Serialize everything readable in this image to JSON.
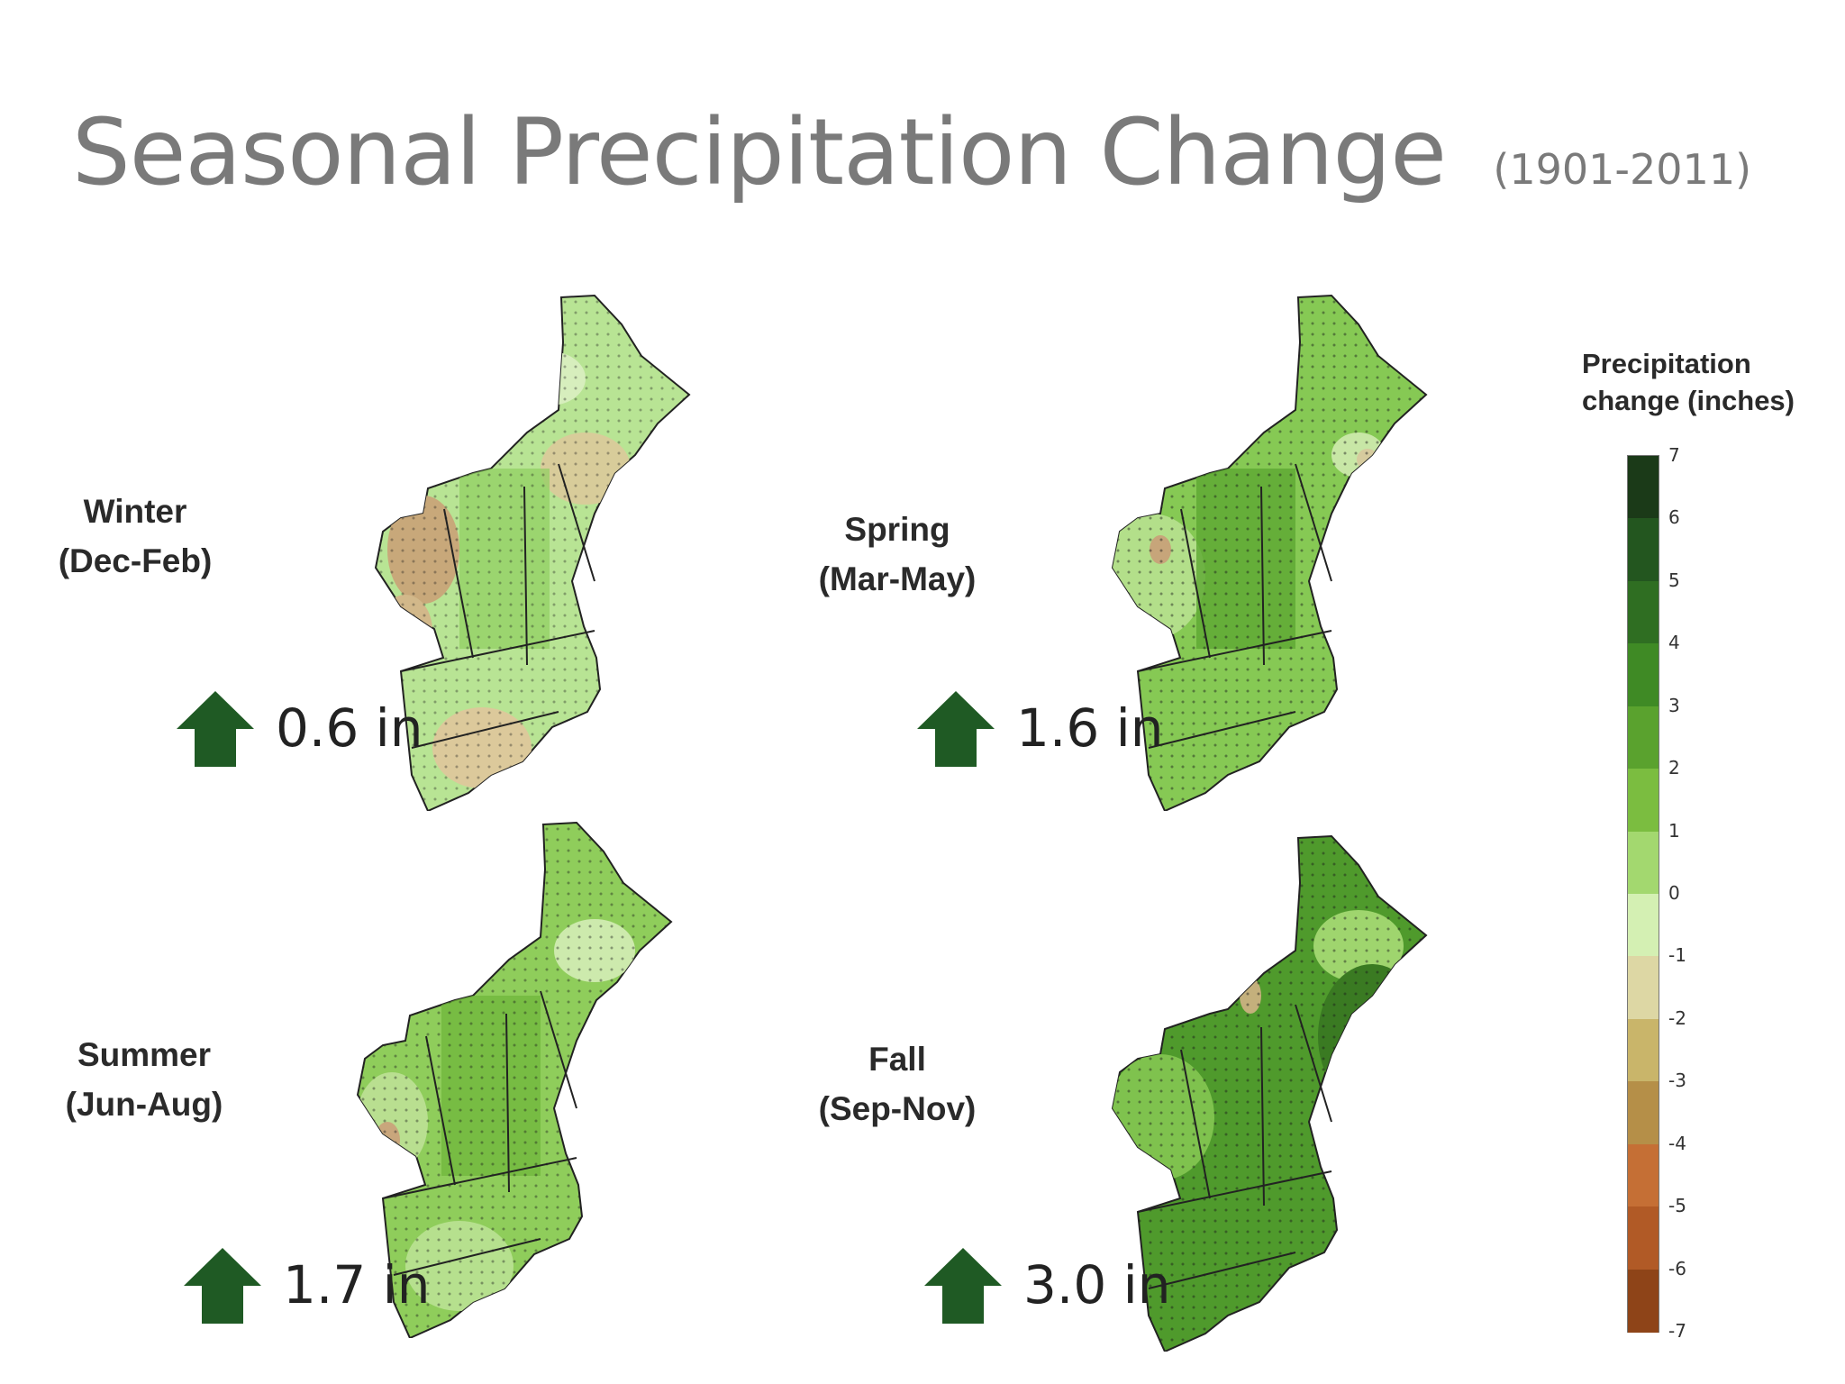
{
  "title": "Seasonal Precipitation Change",
  "subtitle": "(1901-2011)",
  "colors": {
    "title": "#7a7a7a",
    "arrow": "#1f5a24",
    "state_border": "#222222"
  },
  "panels": [
    {
      "season": "Winter",
      "months": "(Dec-Feb)",
      "change": "0.6 in",
      "change_value": 0.6
    },
    {
      "season": "Spring",
      "months": "(Mar-May)",
      "change": "1.6 in",
      "change_value": 1.6
    },
    {
      "season": "Summer",
      "months": "(Jun-Aug)",
      "change": "1.7 in",
      "change_value": 1.7
    },
    {
      "season": "Fall",
      "months": "(Sep-Nov)",
      "change": "3.0 in",
      "change_value": 3.0
    }
  ],
  "legend": {
    "title_line1": "Precipitation",
    "title_line2": "change (inches)",
    "ticks": [
      "7",
      "6",
      "5",
      "4",
      "3",
      "2",
      "1",
      "0",
      "-1",
      "-2",
      "-3",
      "-4",
      "-5",
      "-6",
      "-7"
    ],
    "bins": [
      "#1b3a18",
      "#23561f",
      "#2f6e22",
      "#3f8a25",
      "#5aa22e",
      "#7bbd40",
      "#a3d86f",
      "#d4f0b3",
      "#ddd7a4",
      "#c9b56a",
      "#b58f48",
      "#c56f35",
      "#b15a26",
      "#8e4418"
    ]
  }
}
